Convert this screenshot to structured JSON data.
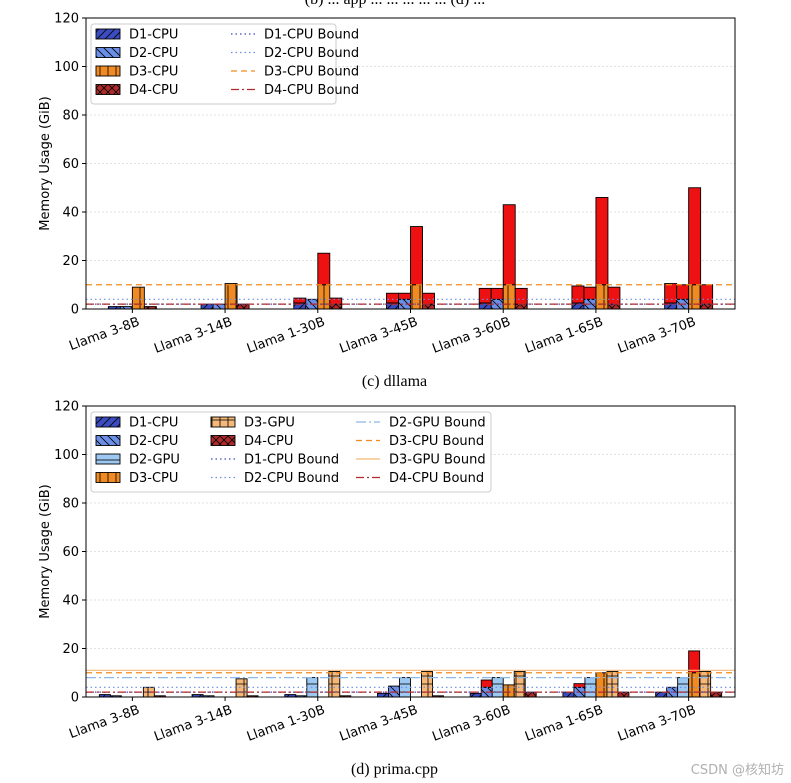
{
  "page": {
    "top_caption_cut": "(b) ... app ... ... ... ... ... (d) ...",
    "watermark": "CSDN @核知坊"
  },
  "styles": {
    "D1-CPU": {
      "fill": "#3B4CC0",
      "hatch": "/"
    },
    "D2-CPU": {
      "fill": "#6B8FE6",
      "hatch": "\\"
    },
    "D2-GPU": {
      "fill": "#9CC8F2",
      "hatch": "-"
    },
    "D3-CPU": {
      "fill": "#F08A22",
      "hatch": "|"
    },
    "D3-GPU": {
      "fill": "#F5B878",
      "hatch": "+"
    },
    "D4-CPU": {
      "fill": "#B02A2A",
      "hatch": "x"
    },
    "overflow": {
      "fill": "#EE1111"
    },
    "lines": {
      "D1-CPU Bound": {
        "color": "#3B4CC0",
        "dash": "1.5,3"
      },
      "D2-CPU Bound": {
        "color": "#6B8FE6",
        "dash": "1.5,3"
      },
      "D2-GPU Bound": {
        "color": "#8CB8E8",
        "dash": "10,3,2,3"
      },
      "D3-CPU Bound": {
        "color": "#F08A22",
        "dash": "6,4"
      },
      "D3-GPU Bound": {
        "color": "#F2B875",
        "dash": ""
      },
      "D4-CPU Bound": {
        "color": "#B02A2A",
        "dash": "8,3,2,3"
      }
    }
  },
  "chart_data": [
    {
      "type": "bar",
      "caption": "(c) dllama",
      "ylabel": "Memory Usage (GiB)",
      "ylim": [
        0,
        120
      ],
      "yticks": [
        0,
        20,
        40,
        60,
        80,
        100,
        120
      ],
      "grid": true,
      "legend_position": "top-left",
      "legend": [
        [
          "D1-CPU",
          "D1-CPU Bound"
        ],
        [
          "D2-CPU",
          "D2-CPU Bound"
        ],
        [
          "D3-CPU",
          "D3-CPU Bound"
        ],
        [
          "D4-CPU",
          "D4-CPU Bound"
        ]
      ],
      "categories": [
        "Llama 3-8B",
        "Llama 3-14B",
        "Llama 1-30B",
        "Llama 3-45B",
        "Llama 3-60B",
        "Llama 1-65B",
        "Llama 3-70B"
      ],
      "series": [
        {
          "name": "D1-CPU",
          "values": [
            1,
            2,
            2.5,
            2.5,
            2.5,
            2.5,
            2.5
          ],
          "overflow": [
            0,
            0,
            2,
            4,
            6,
            7,
            8
          ]
        },
        {
          "name": "D2-CPU",
          "values": [
            1,
            2,
            4,
            4,
            4,
            4,
            4
          ],
          "overflow": [
            0,
            0,
            0,
            2.5,
            4.5,
            5,
            6
          ]
        },
        {
          "name": "D3-CPU",
          "values": [
            9,
            10.5,
            10,
            10,
            10,
            10,
            10
          ],
          "overflow": [
            0,
            0,
            13,
            24,
            33,
            36,
            40
          ]
        },
        {
          "name": "D4-CPU",
          "values": [
            1,
            2,
            2,
            2,
            2,
            2,
            2
          ],
          "overflow": [
            0,
            0,
            2.5,
            4.5,
            6.5,
            7,
            8
          ]
        }
      ],
      "bounds": [
        {
          "name": "D1-CPU Bound",
          "value": 2
        },
        {
          "name": "D2-CPU Bound",
          "value": 4
        },
        {
          "name": "D3-CPU Bound",
          "value": 10
        },
        {
          "name": "D4-CPU Bound",
          "value": 2
        }
      ]
    },
    {
      "type": "bar",
      "caption": "(d) prima.cpp",
      "ylabel": "Memory Usage (GiB)",
      "ylim": [
        0,
        120
      ],
      "yticks": [
        0,
        20,
        40,
        60,
        80,
        100,
        120
      ],
      "grid": true,
      "legend_position": "top-left",
      "legend": [
        [
          "D1-CPU",
          "D3-GPU",
          "D2-GPU Bound"
        ],
        [
          "D2-CPU",
          "D4-CPU",
          "D3-CPU Bound"
        ],
        [
          "D2-GPU",
          "D1-CPU Bound",
          "D3-GPU Bound"
        ],
        [
          "D3-CPU",
          "D2-CPU Bound",
          "D4-CPU Bound"
        ]
      ],
      "categories": [
        "Llama 3-8B",
        "Llama 3-14B",
        "Llama 1-30B",
        "Llama 3-45B",
        "Llama 3-60B",
        "Llama 1-65B",
        "Llama 3-70B"
      ],
      "series": [
        {
          "name": "D1-CPU",
          "values": [
            1,
            1,
            1,
            1.5,
            1.5,
            2,
            2
          ],
          "overflow": [
            0,
            0,
            0,
            0,
            0,
            0,
            0
          ]
        },
        {
          "name": "D2-CPU",
          "values": [
            0.5,
            0.5,
            0.5,
            4.5,
            4,
            4,
            4
          ],
          "overflow": [
            0,
            0,
            0,
            0,
            3,
            1.5,
            0
          ]
        },
        {
          "name": "D2-GPU",
          "values": [
            0,
            0,
            8,
            8,
            8,
            8,
            8
          ],
          "overflow": [
            0,
            0,
            0,
            0,
            0,
            0,
            0
          ]
        },
        {
          "name": "D3-CPU",
          "values": [
            0,
            0,
            0,
            0,
            5,
            10,
            10
          ],
          "overflow": [
            0,
            0,
            0,
            0,
            0,
            0,
            9
          ]
        },
        {
          "name": "D3-GPU",
          "values": [
            4,
            7.5,
            10.5,
            10.5,
            10.5,
            10.5,
            10.5
          ],
          "overflow": [
            0,
            0,
            0,
            0,
            0,
            0,
            0
          ]
        },
        {
          "name": "D4-CPU",
          "values": [
            0.5,
            0.5,
            0.5,
            0.5,
            2,
            2,
            2
          ],
          "overflow": [
            0,
            0,
            0,
            0,
            0,
            0,
            0
          ]
        }
      ],
      "bounds": [
        {
          "name": "D1-CPU Bound",
          "value": 2
        },
        {
          "name": "D2-CPU Bound",
          "value": 4
        },
        {
          "name": "D2-GPU Bound",
          "value": 8
        },
        {
          "name": "D3-CPU Bound",
          "value": 10
        },
        {
          "name": "D3-GPU Bound",
          "value": 11
        },
        {
          "name": "D4-CPU Bound",
          "value": 2
        }
      ]
    }
  ]
}
